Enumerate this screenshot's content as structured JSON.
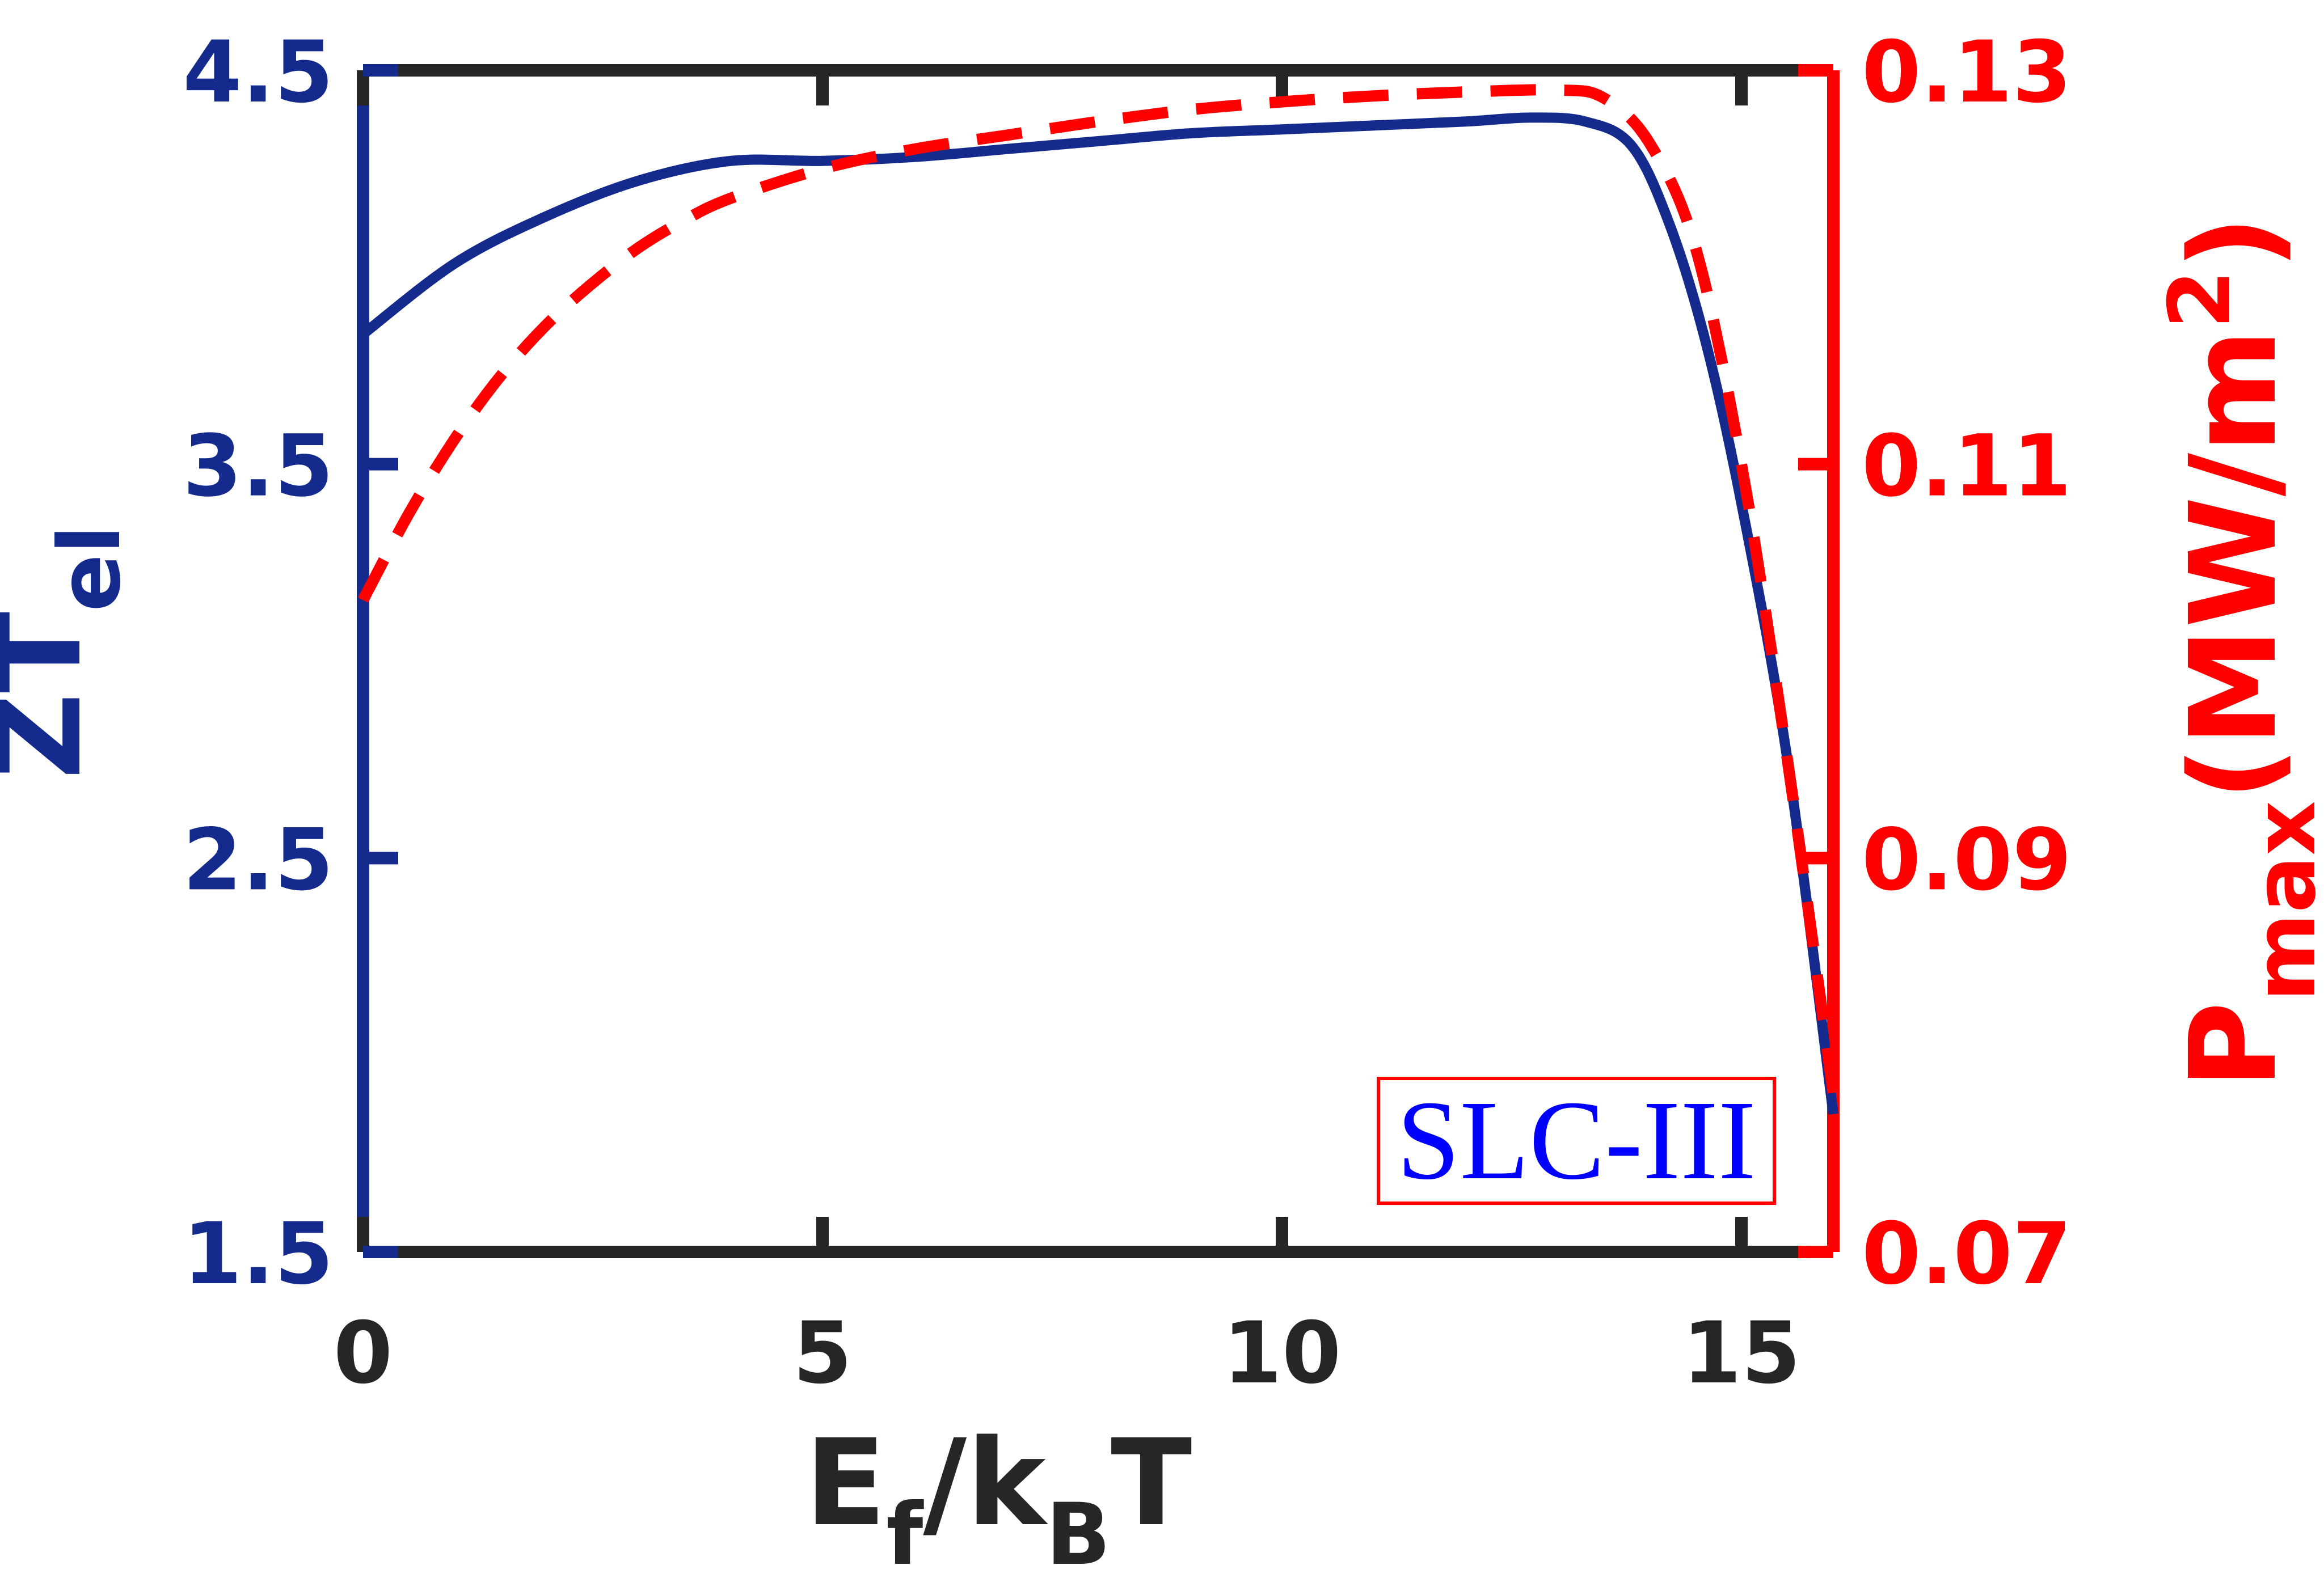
{
  "chart_data": {
    "type": "line",
    "x_axis": {
      "label_main": "E",
      "label_sub1": "f",
      "label_mid": "/k",
      "label_sub2": "B",
      "label_end": "T",
      "range": [
        0,
        16
      ],
      "ticks": [
        0,
        5,
        10,
        15
      ],
      "tick_labels": [
        "0",
        "5",
        "10",
        "15"
      ],
      "color": "#262626"
    },
    "y_left": {
      "label_main": "ZT",
      "label_sub": "el",
      "range": [
        1.5,
        4.5
      ],
      "ticks": [
        1.5,
        2.5,
        3.5,
        4.5
      ],
      "tick_labels": [
        "1.5",
        "2.5",
        "3.5",
        "4.5"
      ],
      "color": "#142A8C"
    },
    "y_right": {
      "label_main": "P",
      "label_sub": "max",
      "label_unit": "(MW/m",
      "label_sup": "2",
      "label_close": ")",
      "range": [
        0.07,
        0.13
      ],
      "ticks": [
        0.07,
        0.09,
        0.11,
        0.13
      ],
      "tick_labels": [
        "0.07",
        "0.09",
        "0.11",
        "0.13"
      ],
      "color": "#FF0000"
    },
    "grid": false,
    "annotation": {
      "text": "SLC-III",
      "text_color": "#0000FF",
      "border_color": "#FF0000",
      "placement": "bottom-right"
    },
    "series": [
      {
        "axis": "left",
        "style": "solid",
        "color": "#142A8C",
        "x": [
          0,
          1,
          2,
          3,
          4,
          5,
          6,
          7,
          8,
          9,
          10,
          11,
          12,
          12.7,
          13.3,
          13.8,
          14.2,
          14.6,
          15,
          15.5,
          16
        ],
        "y": [
          3.83,
          4.01,
          4.13,
          4.22,
          4.27,
          4.27,
          4.28,
          4.3,
          4.32,
          4.34,
          4.35,
          4.36,
          4.37,
          4.38,
          4.37,
          4.31,
          4.12,
          3.82,
          3.4,
          2.75,
          1.85
        ]
      },
      {
        "axis": "right",
        "style": "dashed",
        "color": "#FF0000",
        "x": [
          0,
          0.5,
          1,
          1.5,
          2,
          2.5,
          3,
          3.5,
          4,
          5,
          6,
          7,
          8,
          9,
          10,
          11,
          12,
          13,
          13.5,
          14,
          14.5,
          15,
          15.5,
          16
        ],
        "y": [
          0.1031,
          0.1075,
          0.1113,
          0.1145,
          0.1171,
          0.1192,
          0.121,
          0.1224,
          0.1235,
          0.125,
          0.126,
          0.1267,
          0.1274,
          0.128,
          0.1284,
          0.1287,
          0.1289,
          0.129,
          0.1286,
          0.1263,
          0.121,
          0.11,
          0.095,
          0.078
        ]
      }
    ]
  }
}
